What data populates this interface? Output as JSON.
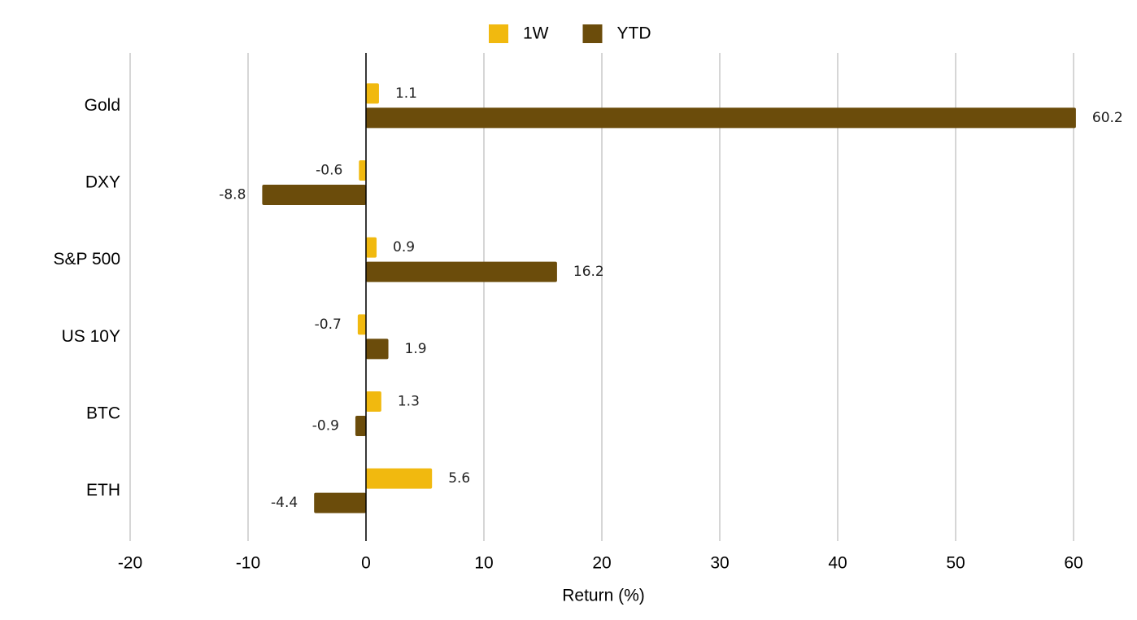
{
  "chart_data": {
    "type": "bar",
    "orientation": "horizontal",
    "x_label": "Return (%)",
    "categories": [
      "Gold",
      "DXY",
      "S&P 500",
      "US 10Y",
      "BTC",
      "ETH"
    ],
    "series": [
      {
        "name": "1W",
        "color": "#f1b90f",
        "values": [
          1.1,
          -0.6,
          0.9,
          -0.7,
          1.3,
          5.6
        ]
      },
      {
        "name": "YTD",
        "color": "#6b4c0b",
        "values": [
          60.2,
          -8.8,
          16.2,
          1.9,
          -0.9,
          -4.4
        ]
      }
    ],
    "xlim": [
      -20,
      60
    ],
    "xticks": [
      -20,
      -10,
      0,
      10,
      20,
      30,
      40,
      50,
      60
    ],
    "grid": true,
    "legend": "top"
  }
}
